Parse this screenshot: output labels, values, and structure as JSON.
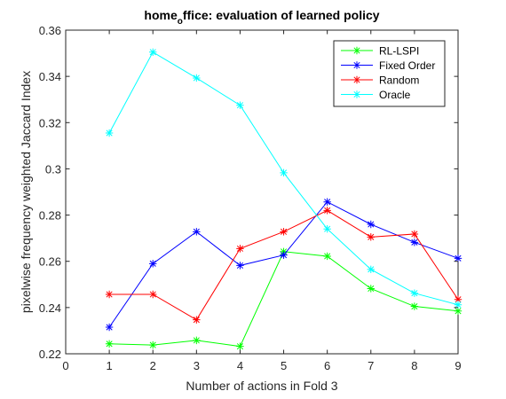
{
  "chart_data": {
    "type": "line",
    "title_main": "home",
    "title_sub": "o",
    "title_rest": "ffice: evaluation of learned policy",
    "xlabel": "Number of actions in Fold 3",
    "ylabel": "pixelwise frequency weighted Jaccard Index",
    "xlim": [
      0,
      9
    ],
    "ylim": [
      0.22,
      0.36
    ],
    "xticks": [
      "0",
      "1",
      "2",
      "3",
      "4",
      "5",
      "6",
      "7",
      "8",
      "9"
    ],
    "yticks": [
      "0.22",
      "0.24",
      "0.26",
      "0.28",
      "0.3",
      "0.32",
      "0.34",
      "0.36"
    ],
    "grid": false,
    "legend_position": "top-right",
    "marker": "asterisk",
    "x": [
      1,
      2,
      3,
      4,
      5,
      6,
      7,
      8,
      9
    ],
    "series": [
      {
        "name": "RL-LSPI",
        "color": "#00ff00",
        "values": [
          0.2243,
          0.2238,
          0.2258,
          0.2232,
          0.2642,
          0.2622,
          0.2482,
          0.2405,
          0.2385
        ]
      },
      {
        "name": "Fixed Order",
        "color": "#0000ff",
        "values": [
          0.2315,
          0.259,
          0.2728,
          0.2582,
          0.2627,
          0.2857,
          0.276,
          0.2682,
          0.2613
        ]
      },
      {
        "name": "Random",
        "color": "#ff0000",
        "values": [
          0.2457,
          0.2457,
          0.2347,
          0.2655,
          0.2728,
          0.282,
          0.2705,
          0.2718,
          0.2435
        ]
      },
      {
        "name": "Oracle",
        "color": "#00ffff",
        "values": [
          0.3155,
          0.3505,
          0.3393,
          0.3275,
          0.2983,
          0.274,
          0.2565,
          0.2462,
          0.2412
        ]
      }
    ]
  }
}
